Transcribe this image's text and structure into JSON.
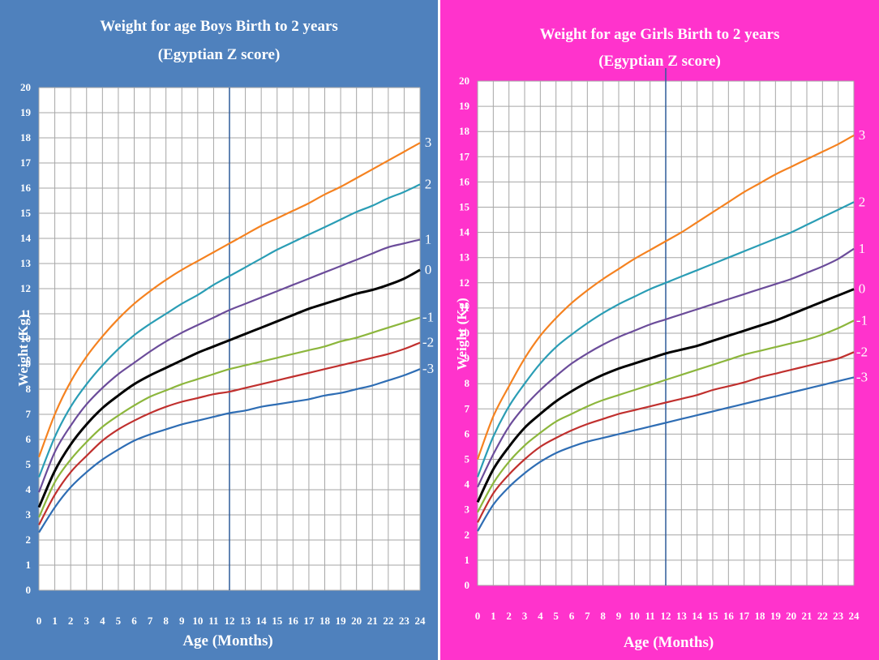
{
  "colors": {
    "boys_background": "#4f81bd",
    "girls_background": "#ff33cc",
    "plot_background": "#ffffff",
    "grid": "#a6a6a6",
    "midline": "#2e5b9a",
    "z3": "#f58220",
    "z2": "#2a9db5",
    "z1": "#6b4c9a",
    "z0": "#000000",
    "zm1": "#8cb63c",
    "zm2": "#c0302e",
    "zm3": "#2e6db4"
  },
  "chart_data": [
    {
      "type": "line",
      "title": "Weight for age Boys Birth to 2 years",
      "subtitle": "(Egyptian Z score)",
      "xlabel": "Age (Months)",
      "ylabel": "Weight (Kg)",
      "xlim": [
        0,
        24
      ],
      "ylim": [
        0,
        20
      ],
      "x_ticks": [
        0,
        1,
        2,
        3,
        4,
        5,
        6,
        7,
        8,
        9,
        10,
        11,
        12,
        13,
        14,
        15,
        16,
        17,
        18,
        19,
        20,
        21,
        22,
        23,
        24
      ],
      "y_ticks": [
        0,
        1,
        2,
        3,
        4,
        5,
        6,
        7,
        8,
        9,
        10,
        11,
        12,
        13,
        14,
        15,
        16,
        17,
        18,
        19,
        20
      ],
      "grid": true,
      "reference_line_x": 12,
      "x": [
        0,
        1,
        2,
        3,
        4,
        5,
        6,
        7,
        8,
        9,
        10,
        11,
        12,
        13,
        14,
        15,
        16,
        17,
        18,
        19,
        20,
        21,
        22,
        23,
        24
      ],
      "series": [
        {
          "name": "3",
          "color_key": "z3",
          "values": [
            5.3,
            7.0,
            8.3,
            9.3,
            10.1,
            10.8,
            11.4,
            11.9,
            12.35,
            12.75,
            13.1,
            13.45,
            13.8,
            14.15,
            14.5,
            14.8,
            15.1,
            15.4,
            15.75,
            16.05,
            16.4,
            16.75,
            17.1,
            17.45,
            17.8
          ]
        },
        {
          "name": "2",
          "color_key": "z2",
          "values": [
            4.5,
            6.1,
            7.3,
            8.2,
            8.95,
            9.6,
            10.15,
            10.6,
            11.0,
            11.4,
            11.75,
            12.15,
            12.5,
            12.85,
            13.2,
            13.55,
            13.85,
            14.15,
            14.45,
            14.75,
            15.05,
            15.3,
            15.6,
            15.85,
            16.15
          ]
        },
        {
          "name": "1",
          "color_key": "z1",
          "values": [
            3.9,
            5.5,
            6.55,
            7.4,
            8.05,
            8.6,
            9.05,
            9.5,
            9.9,
            10.25,
            10.55,
            10.85,
            11.15,
            11.4,
            11.65,
            11.9,
            12.15,
            12.4,
            12.65,
            12.9,
            13.15,
            13.4,
            13.65,
            13.8,
            13.95
          ]
        },
        {
          "name": "0",
          "color_key": "z0",
          "values": [
            3.3,
            4.75,
            5.8,
            6.6,
            7.25,
            7.75,
            8.2,
            8.55,
            8.85,
            9.15,
            9.45,
            9.7,
            9.95,
            10.2,
            10.45,
            10.7,
            10.95,
            11.2,
            11.4,
            11.6,
            11.8,
            11.95,
            12.15,
            12.4,
            12.75
          ]
        },
        {
          "name": "-1",
          "color_key": "zm1",
          "values": [
            2.9,
            4.3,
            5.2,
            5.9,
            6.5,
            6.95,
            7.35,
            7.7,
            7.95,
            8.2,
            8.4,
            8.6,
            8.8,
            8.95,
            9.1,
            9.25,
            9.4,
            9.55,
            9.7,
            9.9,
            10.05,
            10.25,
            10.45,
            10.65,
            10.85
          ]
        },
        {
          "name": "-2",
          "color_key": "zm2",
          "values": [
            2.6,
            3.8,
            4.7,
            5.35,
            5.95,
            6.4,
            6.75,
            7.05,
            7.3,
            7.5,
            7.65,
            7.8,
            7.9,
            8.05,
            8.2,
            8.35,
            8.5,
            8.65,
            8.8,
            8.95,
            9.1,
            9.25,
            9.4,
            9.6,
            9.85
          ]
        },
        {
          "name": "-3",
          "color_key": "zm3",
          "values": [
            2.3,
            3.3,
            4.1,
            4.7,
            5.2,
            5.6,
            5.95,
            6.2,
            6.4,
            6.6,
            6.75,
            6.9,
            7.05,
            7.15,
            7.3,
            7.4,
            7.5,
            7.6,
            7.75,
            7.85,
            8.0,
            8.15,
            8.35,
            8.55,
            8.8
          ]
        }
      ]
    },
    {
      "type": "line",
      "title": "Weight for age Girls Birth to 2 years",
      "subtitle": "(Egyptian Z score)",
      "xlabel": "Age (Months)",
      "ylabel": "Weight (Kg)",
      "xlim": [
        0,
        24
      ],
      "ylim": [
        0,
        20
      ],
      "x_ticks": [
        0,
        1,
        2,
        3,
        4,
        5,
        6,
        7,
        8,
        9,
        10,
        11,
        12,
        13,
        14,
        15,
        16,
        17,
        18,
        19,
        20,
        21,
        22,
        23,
        24
      ],
      "y_ticks": [
        0,
        1,
        2,
        3,
        4,
        5,
        6,
        7,
        8,
        9,
        10,
        11,
        12,
        13,
        14,
        15,
        16,
        17,
        18,
        19,
        20
      ],
      "grid": true,
      "reference_line_x": 12,
      "x": [
        0,
        1,
        2,
        3,
        4,
        5,
        6,
        7,
        8,
        9,
        10,
        11,
        12,
        13,
        14,
        15,
        16,
        17,
        18,
        19,
        20,
        21,
        22,
        23,
        24
      ],
      "series": [
        {
          "name": "3",
          "color_key": "z3",
          "values": [
            5.0,
            6.7,
            7.9,
            9.0,
            9.9,
            10.6,
            11.2,
            11.7,
            12.15,
            12.55,
            12.95,
            13.3,
            13.65,
            14.0,
            14.4,
            14.8,
            15.2,
            15.6,
            15.95,
            16.3,
            16.6,
            16.9,
            17.2,
            17.5,
            17.85
          ]
        },
        {
          "name": "2",
          "color_key": "z2",
          "values": [
            4.3,
            5.9,
            7.1,
            8.0,
            8.8,
            9.45,
            9.95,
            10.4,
            10.8,
            11.15,
            11.45,
            11.75,
            12.0,
            12.25,
            12.5,
            12.75,
            13.0,
            13.25,
            13.5,
            13.75,
            14.0,
            14.3,
            14.6,
            14.9,
            15.2
          ]
        },
        {
          "name": "1",
          "color_key": "z1",
          "values": [
            3.9,
            5.2,
            6.3,
            7.1,
            7.75,
            8.3,
            8.8,
            9.2,
            9.55,
            9.85,
            10.1,
            10.35,
            10.55,
            10.75,
            10.95,
            11.15,
            11.35,
            11.55,
            11.75,
            11.95,
            12.15,
            12.4,
            12.65,
            12.95,
            13.35
          ]
        },
        {
          "name": "0",
          "color_key": "z0",
          "values": [
            3.3,
            4.6,
            5.5,
            6.25,
            6.8,
            7.3,
            7.7,
            8.05,
            8.35,
            8.6,
            8.8,
            9.0,
            9.2,
            9.35,
            9.5,
            9.7,
            9.9,
            10.1,
            10.3,
            10.5,
            10.75,
            11.0,
            11.25,
            11.5,
            11.75
          ]
        },
        {
          "name": "-1",
          "color_key": "zm1",
          "values": [
            2.9,
            4.05,
            4.9,
            5.55,
            6.05,
            6.5,
            6.8,
            7.1,
            7.35,
            7.55,
            7.75,
            7.95,
            8.15,
            8.35,
            8.55,
            8.75,
            8.95,
            9.15,
            9.3,
            9.45,
            9.6,
            9.75,
            9.95,
            10.2,
            10.5
          ]
        },
        {
          "name": "-2",
          "color_key": "zm2",
          "values": [
            2.5,
            3.65,
            4.4,
            5.0,
            5.5,
            5.85,
            6.15,
            6.4,
            6.6,
            6.8,
            6.95,
            7.1,
            7.25,
            7.4,
            7.55,
            7.75,
            7.9,
            8.05,
            8.25,
            8.4,
            8.55,
            8.7,
            8.85,
            9.0,
            9.25
          ]
        },
        {
          "name": "-3",
          "color_key": "zm3",
          "values": [
            2.15,
            3.2,
            3.9,
            4.45,
            4.9,
            5.25,
            5.5,
            5.7,
            5.85,
            6.0,
            6.15,
            6.3,
            6.45,
            6.6,
            6.75,
            6.9,
            7.05,
            7.2,
            7.35,
            7.5,
            7.65,
            7.8,
            7.95,
            8.1,
            8.25
          ]
        }
      ]
    }
  ]
}
